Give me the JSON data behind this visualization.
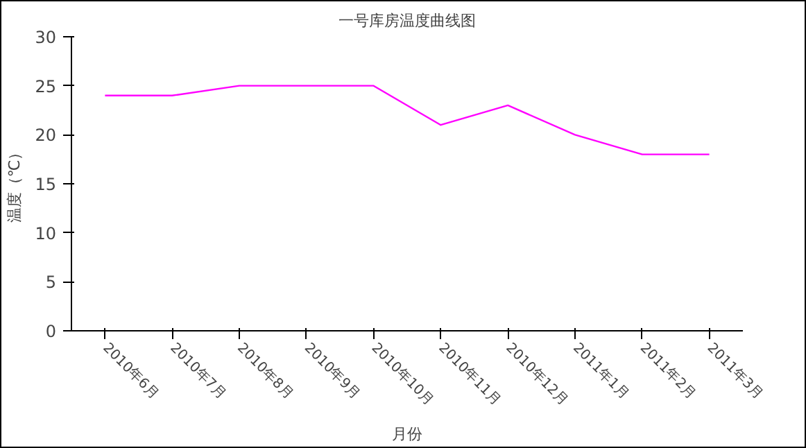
{
  "chart_data": {
    "type": "line",
    "title": "一号库房温度曲线图",
    "xlabel": "月份",
    "ylabel": "温度（℃）",
    "categories": [
      "2010年6月",
      "2010年7月",
      "2010年8月",
      "2010年9月",
      "2010年10月",
      "2010年11月",
      "2010年12月",
      "2011年1月",
      "2011年2月",
      "2011年3月"
    ],
    "series": [
      {
        "color": "#ff00ff",
        "values": [
          24,
          24,
          25,
          25,
          25,
          21,
          23,
          20,
          18,
          18
        ]
      }
    ],
    "ylim": [
      0,
      30
    ],
    "yticks": [
      0,
      5,
      10,
      15,
      20,
      25,
      30
    ],
    "grid": false,
    "marker": "none",
    "line_style": "solid"
  }
}
